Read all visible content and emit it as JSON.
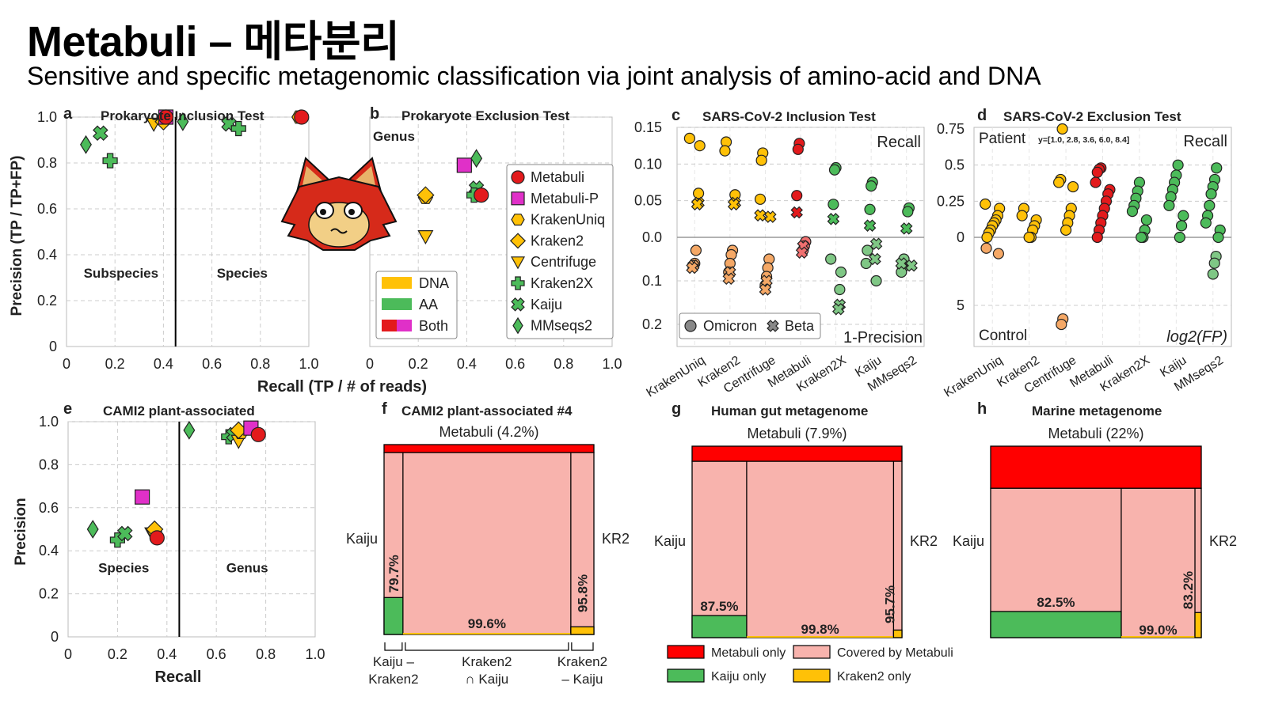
{
  "title": "Metabuli – 메타분리",
  "subtitle": "Sensitive and specific metagenomic classification via joint analysis of amino-acid and DNA",
  "colors": {
    "metabuli": "#e31a1c",
    "metabuli_p": "#e030c8",
    "dna": "#ffc107",
    "aa": "#4cbb5a",
    "metabuli_only": "#ff0000",
    "covered": "#f8b3ad",
    "grid": "#cccccc"
  },
  "chart_data": [
    {
      "panel": "a",
      "type": "scatter",
      "title": "Prokaryote Inclusion Test",
      "ylabel": "Precision (TP / TP+FP)",
      "xlim": [
        0,
        1.0
      ],
      "ylim": [
        0,
        1.0
      ],
      "xticks": [
        "0",
        "0.2",
        "0.4",
        "0.6",
        "0.8",
        "1.0"
      ],
      "yticks": [
        "0",
        "0.2",
        "0.4",
        "0.6",
        "0.8",
        "1.0"
      ],
      "regions": [
        "Subspecies",
        "Species"
      ],
      "divider_x": 0.45,
      "points": [
        {
          "tool": "Kraken2X",
          "x": 0.18,
          "y": 0.81
        },
        {
          "tool": "MMseqs2",
          "x": 0.08,
          "y": 0.88
        },
        {
          "tool": "Kaiju",
          "x": 0.14,
          "y": 0.93
        },
        {
          "tool": "Centrifuge",
          "x": 0.36,
          "y": 0.97
        },
        {
          "tool": "Kraken2",
          "x": 0.4,
          "y": 0.98
        },
        {
          "tool": "Metabuli-P",
          "x": 0.41,
          "y": 1.0
        },
        {
          "tool": "Metabuli",
          "x": 0.41,
          "y": 1.0
        },
        {
          "tool": "MMseqs2",
          "x": 0.48,
          "y": 0.98
        },
        {
          "tool": "Kaiju",
          "x": 0.67,
          "y": 0.97
        },
        {
          "tool": "Kraken2X",
          "x": 0.71,
          "y": 0.95
        },
        {
          "tool": "KrakenUniq",
          "x": 0.96,
          "y": 1.0
        },
        {
          "tool": "Metabuli",
          "x": 0.97,
          "y": 1.0
        }
      ]
    },
    {
      "panel": "b",
      "type": "scatter",
      "title": "Prokaryote Exclusion Test",
      "xlabel": "Recall (TP / # of reads)",
      "xlim": [
        0,
        1.0
      ],
      "ylim": [
        0,
        1.0
      ],
      "xticks": [
        "0",
        "0.2",
        "0.4",
        "0.6",
        "0.8",
        "1.0"
      ],
      "region": "Genus",
      "points": [
        {
          "tool": "Metabuli-P",
          "x": 0.39,
          "y": 0.79
        },
        {
          "tool": "MMseqs2",
          "x": 0.44,
          "y": 0.82
        },
        {
          "tool": "Kaiju",
          "x": 0.44,
          "y": 0.69
        },
        {
          "tool": "Kraken2X",
          "x": 0.43,
          "y": 0.66
        },
        {
          "tool": "Metabuli",
          "x": 0.46,
          "y": 0.66
        },
        {
          "tool": "KrakenUniq",
          "x": 0.23,
          "y": 0.65
        },
        {
          "tool": "Kraken2",
          "x": 0.23,
          "y": 0.66
        },
        {
          "tool": "Centrifuge",
          "x": 0.23,
          "y": 0.48
        }
      ],
      "legend_types": [
        {
          "label": "DNA",
          "colors": [
            "#ffc107"
          ]
        },
        {
          "label": "AA",
          "colors": [
            "#4cbb5a"
          ]
        },
        {
          "label": "Both",
          "colors": [
            "#e31a1c",
            "#e030c8"
          ]
        }
      ],
      "legend_tools": [
        {
          "label": "Metabuli",
          "marker": "circle",
          "color": "#e31a1c"
        },
        {
          "label": "Metabuli-P",
          "marker": "square",
          "color": "#e030c8"
        },
        {
          "label": "KrakenUniq",
          "marker": "hexagon",
          "color": "#ffc107"
        },
        {
          "label": "Kraken2",
          "marker": "diamond",
          "color": "#ffc107"
        },
        {
          "label": "Centrifuge",
          "marker": "triangle",
          "color": "#ffc107"
        },
        {
          "label": "Kraken2X",
          "marker": "plus",
          "color": "#4cbb5a"
        },
        {
          "label": "Kaiju",
          "marker": "x",
          "color": "#4cbb5a"
        },
        {
          "label": "MMseqs2",
          "marker": "thin-diamond",
          "color": "#4cbb5a"
        }
      ]
    },
    {
      "panel": "c",
      "type": "strip",
      "title": "SARS-CoV-2 Inclusion Test",
      "ytop_label": "Recall",
      "ybottom_label": "1-Precision",
      "yticks_top": [
        "0.0",
        "0.05",
        "0.10",
        "0.15"
      ],
      "yticks_bottom": [
        "0.1",
        "0.2"
      ],
      "categories": [
        "KrakenUniq",
        "Kraken2",
        "Centrifuge",
        "Metabuli",
        "Kraken2X",
        "Kaiju",
        "MMseqs2"
      ],
      "legend": [
        {
          "label": "Omicron",
          "marker": "circle"
        },
        {
          "label": "Beta",
          "marker": "x"
        }
      ],
      "recall_omicron": [
        [
          0.135,
          0.125,
          0.06
        ],
        [
          0.13,
          0.118,
          0.058
        ],
        [
          0.115,
          0.105,
          0.052
        ],
        [
          0.128,
          0.12,
          0.057
        ],
        [
          0.095,
          0.092,
          0.045
        ],
        [
          0.075,
          0.07,
          0.038
        ],
        [
          0.04,
          0.035
        ]
      ],
      "recall_beta": [
        [
          0.047,
          0.045
        ],
        [
          0.047,
          0.045
        ],
        [
          0.03,
          0.028
        ],
        [
          0.034
        ],
        [
          0.025
        ],
        [
          0.016
        ],
        [
          0.012
        ]
      ],
      "fp_omicron": [
        [
          0.03,
          0.06,
          0.065
        ],
        [
          0.03,
          0.04,
          0.06,
          0.08
        ],
        [
          0.05,
          0.07,
          0.09,
          0.11
        ],
        [
          0.01,
          0.02,
          0.03
        ],
        [
          0.05,
          0.08,
          0.12
        ],
        [
          0.03,
          0.06,
          0.1
        ],
        [
          0.05,
          0.07,
          0.08
        ]
      ],
      "fp_beta": [
        [
          0.065,
          0.07
        ],
        [
          0.08,
          0.095
        ],
        [
          0.1,
          0.12
        ],
        [
          0.02,
          0.035
        ],
        [
          0.155,
          0.165
        ],
        [
          0.015,
          0.05
        ],
        [
          0.06,
          0.065
        ]
      ]
    },
    {
      "panel": "d",
      "type": "strip",
      "title": "SARS-CoV-2 Exclusion Test",
      "ytop_label": "Patient",
      "ytop_right_label": "Recall",
      "ybottom_label": "Control",
      "ybottom_right_label": "log2(FP)",
      "yticks_top": [
        "0",
        "0.25",
        "0.5",
        "0.75"
      ],
      "ytick_bottom": "5",
      "annotation": "y=[1.0, 2.8, 3.6, 6.0, 8.4]",
      "categories": [
        "KrakenUniq",
        "Kraken2",
        "Centrifuge",
        "Metabuli",
        "Kraken2X",
        "Kaiju",
        "MMseqs2"
      ],
      "recall": [
        [
          0.23,
          0.2,
          0.15,
          0.12,
          0.1,
          0.08,
          0.05,
          0.03,
          0.0
        ],
        [
          0.2,
          0.15,
          0.12,
          0.08,
          0.05,
          0.0,
          0.0
        ],
        [
          0.75,
          0.4,
          0.38,
          0.35,
          0.2,
          0.15,
          0.1,
          0.05
        ],
        [
          0.48,
          0.47,
          0.45,
          0.38,
          0.33,
          0.3,
          0.25,
          0.2,
          0.15,
          0.1,
          0.05,
          0.0
        ],
        [
          0.38,
          0.32,
          0.27,
          0.22,
          0.18,
          0.12,
          0.05,
          0.0,
          0.0
        ],
        [
          0.5,
          0.43,
          0.38,
          0.33,
          0.28,
          0.22,
          0.15,
          0.08,
          0.0
        ],
        [
          0.48,
          0.4,
          0.35,
          0.3,
          0.22,
          0.15,
          0.1,
          0.05,
          0.0
        ]
      ],
      "log2fp": [
        [
          0.8,
          1.2
        ],
        [],
        [
          6.0,
          6.4
        ],
        [],
        [],
        [],
        [
          1.4,
          1.9,
          2.7
        ]
      ]
    },
    {
      "panel": "e",
      "type": "scatter",
      "title": "CAMI2 plant-associated",
      "xlabel": "Recall",
      "ylabel": "Precision",
      "xlim": [
        0,
        1.0
      ],
      "ylim": [
        0,
        1.0
      ],
      "xticks": [
        "0",
        "0.2",
        "0.4",
        "0.6",
        "0.8",
        "1.0"
      ],
      "yticks": [
        "0",
        "0.2",
        "0.4",
        "0.6",
        "0.8",
        "1.0"
      ],
      "regions": [
        "Species",
        "Genus"
      ],
      "divider_x": 0.45,
      "points": [
        {
          "tool": "MMseqs2",
          "x": 0.1,
          "y": 0.5
        },
        {
          "tool": "Kraken2X",
          "x": 0.2,
          "y": 0.45
        },
        {
          "tool": "Kaiju",
          "x": 0.23,
          "y": 0.48
        },
        {
          "tool": "Metabuli-P",
          "x": 0.3,
          "y": 0.65
        },
        {
          "tool": "Centrifuge",
          "x": 0.34,
          "y": 0.48
        },
        {
          "tool": "KrakenUniq",
          "x": 0.35,
          "y": 0.49
        },
        {
          "tool": "Kraken2",
          "x": 0.35,
          "y": 0.5
        },
        {
          "tool": "Metabuli",
          "x": 0.36,
          "y": 0.46
        },
        {
          "tool": "MMseqs2",
          "x": 0.49,
          "y": 0.96
        },
        {
          "tool": "Kraken2X",
          "x": 0.65,
          "y": 0.93
        },
        {
          "tool": "Kaiju",
          "x": 0.67,
          "y": 0.94
        },
        {
          "tool": "Centrifuge",
          "x": 0.69,
          "y": 0.91
        },
        {
          "tool": "KrakenUniq",
          "x": 0.7,
          "y": 0.95
        },
        {
          "tool": "Kraken2",
          "x": 0.69,
          "y": 0.96
        },
        {
          "tool": "Metabuli-P",
          "x": 0.74,
          "y": 0.97
        },
        {
          "tool": "Metabuli",
          "x": 0.77,
          "y": 0.94
        }
      ]
    },
    {
      "panel": "f",
      "type": "mosaic",
      "title": "CAMI2 plant-associated #4",
      "top_label": "Metabuli (4.2%)",
      "left_label": "Kaiju",
      "right_label": "KR2",
      "metabuli_only": 0.042,
      "widths": [
        0.09,
        0.8,
        0.11
      ],
      "green_frac": 0.203,
      "yellow_frac": 0.042,
      "labels": {
        "left": "79.7%",
        "mid": "99.6%",
        "right": "95.8%"
      },
      "brace_labels": [
        "Kaiju –\nKraken2",
        "Kraken2\n∩ Kaiju",
        "Kraken2\n– Kaiju"
      ]
    },
    {
      "panel": "g",
      "type": "mosaic",
      "title": "Human gut metagenome",
      "top_label": "Metabuli (7.9%)",
      "left_label": "Kaiju",
      "right_label": "KR2",
      "metabuli_only": 0.079,
      "widths": [
        0.26,
        0.7,
        0.04
      ],
      "green_frac": 0.125,
      "yellow_frac": 0.043,
      "labels": {
        "left": "87.5%",
        "mid": "99.8%",
        "right": "95.7%"
      }
    },
    {
      "panel": "h",
      "type": "mosaic",
      "title": "Marine metagenome",
      "top_label": "Metabuli (22%)",
      "left_label": "Kaiju",
      "right_label": "KR2",
      "metabuli_only": 0.22,
      "widths": [
        0.62,
        0.35,
        0.03
      ],
      "green_frac": 0.175,
      "yellow_frac": 0.168,
      "labels": {
        "left": "82.5%",
        "mid": "99.0%",
        "right": "83.2%"
      }
    }
  ],
  "mosaic_legend": [
    {
      "label": "Metabuli only",
      "color": "#ff0000"
    },
    {
      "label": "Covered by Metabuli",
      "color": "#f8b3ad"
    },
    {
      "label": "Kaiju only",
      "color": "#4cbb5a"
    },
    {
      "label": "Kraken2 only",
      "color": "#ffc107"
    }
  ],
  "mascot": {
    "icon": "fox-mascot-icon"
  }
}
